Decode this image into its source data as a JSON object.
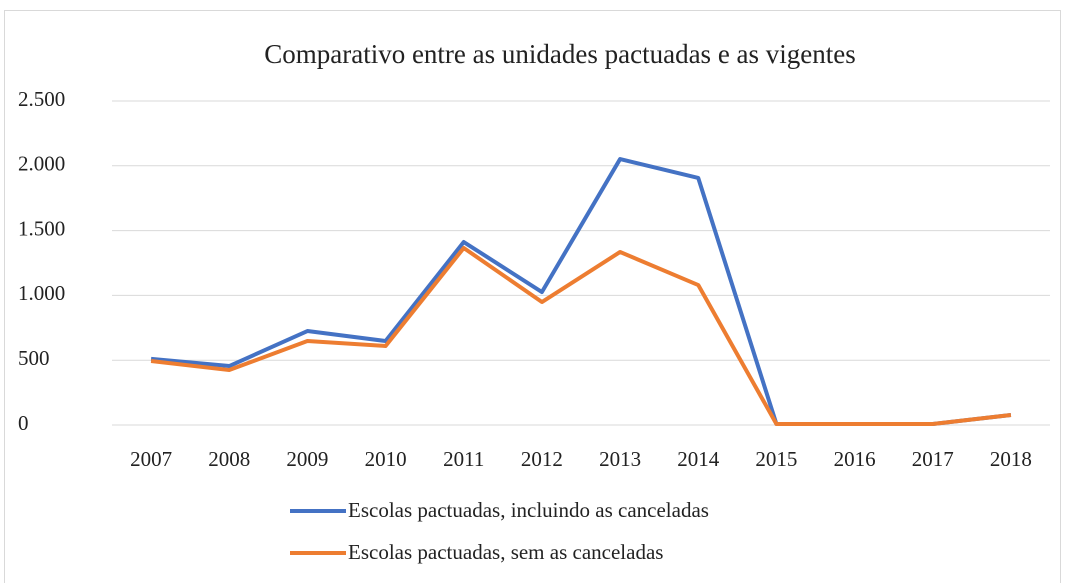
{
  "chart_data": {
    "type": "line",
    "title": "Comparativo entre as unidades pactuadas e as vigentes",
    "categories": [
      "2007",
      "2008",
      "2009",
      "2010",
      "2011",
      "2012",
      "2013",
      "2014",
      "2015",
      "2016",
      "2017",
      "2018"
    ],
    "series": [
      {
        "name": "Escolas pactuadas, incluindo as canceladas",
        "color": "#4472c4",
        "values": [
          510,
          455,
          725,
          648,
          1412,
          1026,
          2052,
          1906,
          8,
          8,
          8,
          77
        ]
      },
      {
        "name": "Escolas pactuadas, sem as canceladas",
        "color": "#ed7d31",
        "values": [
          494,
          424,
          648,
          610,
          1366,
          949,
          1335,
          1080,
          8,
          8,
          8,
          77
        ]
      }
    ],
    "ylim": [
      0,
      2500
    ],
    "yticks": [
      0,
      500,
      {
        "value": 1000,
        "label": "1.000"
      },
      {
        "value": 1500,
        "label": "1.500"
      },
      {
        "value": 2000,
        "label": "2.000"
      },
      {
        "value": 2500,
        "label": "2.500"
      }
    ],
    "grid": true,
    "legend": "bottom"
  }
}
